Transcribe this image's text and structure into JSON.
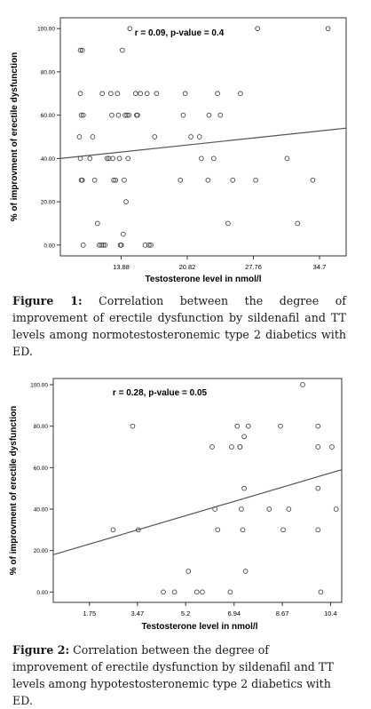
{
  "chart_data": [
    {
      "type": "scatter",
      "annotation": "r = 0.09, p-value = 0.4",
      "xlabel": "Testosterone level in nmol/l",
      "ylabel": "% of improvment of erectile dysfunction",
      "xlim": [
        7.5,
        37.5
      ],
      "ylim": [
        -5,
        105
      ],
      "xticks": [
        13.88,
        20.82,
        27.76,
        34.7
      ],
      "xtick_labels": [
        "13.88",
        "20.82",
        "27.76",
        "34.7"
      ],
      "yticks": [
        0,
        20,
        40,
        60,
        80,
        100
      ],
      "ytick_labels": [
        "0.00",
        "20.00",
        "40.00",
        "60.00",
        "80.00",
        "100.00"
      ],
      "fit_line": {
        "x": [
          7.5,
          37.5
        ],
        "y": [
          40,
          54
        ]
      },
      "points": [
        [
          9.6,
          90
        ],
        [
          9.8,
          90
        ],
        [
          9.6,
          70
        ],
        [
          9.7,
          60
        ],
        [
          9.9,
          60
        ],
        [
          9.5,
          50
        ],
        [
          9.6,
          40
        ],
        [
          9.7,
          30
        ],
        [
          9.8,
          30
        ],
        [
          9.9,
          0
        ],
        [
          10.6,
          40
        ],
        [
          10.9,
          50
        ],
        [
          11.1,
          30
        ],
        [
          11.4,
          10
        ],
        [
          11.6,
          0
        ],
        [
          11.8,
          0
        ],
        [
          12.0,
          0
        ],
        [
          12.2,
          0
        ],
        [
          11.9,
          70
        ],
        [
          12.4,
          40
        ],
        [
          12.6,
          40
        ],
        [
          12.8,
          70
        ],
        [
          12.9,
          60
        ],
        [
          13.0,
          40
        ],
        [
          13.1,
          30
        ],
        [
          13.3,
          30
        ],
        [
          13.5,
          70
        ],
        [
          13.6,
          60
        ],
        [
          13.7,
          40
        ],
        [
          13.8,
          0
        ],
        [
          13.9,
          0
        ],
        [
          14.0,
          90
        ],
        [
          14.1,
          5
        ],
        [
          14.2,
          30
        ],
        [
          14.3,
          60
        ],
        [
          14.4,
          20
        ],
        [
          14.5,
          60
        ],
        [
          14.6,
          40
        ],
        [
          14.7,
          60
        ],
        [
          14.8,
          100
        ],
        [
          15.4,
          70
        ],
        [
          15.5,
          60
        ],
        [
          15.6,
          60
        ],
        [
          15.9,
          70
        ],
        [
          16.4,
          0
        ],
        [
          16.6,
          70
        ],
        [
          16.8,
          0
        ],
        [
          17.0,
          0
        ],
        [
          17.4,
          50
        ],
        [
          17.6,
          70
        ],
        [
          20.1,
          30
        ],
        [
          20.4,
          60
        ],
        [
          20.6,
          70
        ],
        [
          21.2,
          50
        ],
        [
          22.1,
          50
        ],
        [
          22.3,
          40
        ],
        [
          23.0,
          30
        ],
        [
          23.1,
          60
        ],
        [
          23.6,
          40
        ],
        [
          24.0,
          70
        ],
        [
          24.3,
          60
        ],
        [
          25.1,
          10
        ],
        [
          25.6,
          30
        ],
        [
          26.4,
          70
        ],
        [
          28.0,
          30
        ],
        [
          28.2,
          100
        ],
        [
          31.3,
          40
        ],
        [
          32.4,
          10
        ],
        [
          34.0,
          30
        ],
        [
          35.6,
          100
        ]
      ]
    },
    {
      "type": "scatter",
      "annotation": "r = 0.28, p-value = 0.05",
      "xlabel": "Testosterone level in nmol/l",
      "ylabel": "% of improvment of erectile dysfunction",
      "xlim": [
        0.45,
        10.8
      ],
      "ylim": [
        -5,
        103
      ],
      "xticks": [
        1.75,
        3.47,
        5.2,
        6.94,
        8.67,
        10.4
      ],
      "xtick_labels": [
        "1.75",
        "3.47",
        "5.2",
        "6.94",
        "8.67",
        "10.4"
      ],
      "yticks": [
        0,
        20,
        40,
        60,
        80,
        100
      ],
      "ytick_labels": [
        "0.00",
        "20.00",
        "40.00",
        "60.00",
        "80.00",
        "100.00"
      ],
      "fit_line": {
        "x": [
          0.45,
          10.8
        ],
        "y": [
          18,
          59
        ]
      },
      "points": [
        [
          2.6,
          30
        ],
        [
          3.3,
          80
        ],
        [
          3.5,
          30
        ],
        [
          4.4,
          0
        ],
        [
          4.8,
          0
        ],
        [
          5.3,
          10
        ],
        [
          5.6,
          0
        ],
        [
          5.8,
          0
        ],
        [
          6.15,
          70
        ],
        [
          6.25,
          40
        ],
        [
          6.35,
          30
        ],
        [
          6.8,
          0
        ],
        [
          6.85,
          70
        ],
        [
          7.05,
          80
        ],
        [
          7.15,
          70
        ],
        [
          7.15,
          70
        ],
        [
          7.2,
          40
        ],
        [
          7.25,
          30
        ],
        [
          7.3,
          50
        ],
        [
          7.3,
          75
        ],
        [
          7.35,
          10
        ],
        [
          7.45,
          80
        ],
        [
          8.2,
          40
        ],
        [
          8.6,
          80
        ],
        [
          8.7,
          30
        ],
        [
          8.9,
          40
        ],
        [
          9.4,
          100
        ],
        [
          9.95,
          80
        ],
        [
          9.95,
          70
        ],
        [
          9.95,
          50
        ],
        [
          9.95,
          30
        ],
        [
          10.05,
          0
        ],
        [
          10.45,
          70
        ],
        [
          10.6,
          40
        ]
      ]
    }
  ],
  "captions": [
    {
      "label": "Figure 1:",
      "text": "Correlation between the degree of improvement of erectile dysfunction by sildenafil and TT levels among normotestosteronemic type 2 diabetics with ED."
    },
    {
      "label": "Figure 2:",
      "text": "Correlation between the degree of improvement of erectile dysfunction by sildenafil and TT levels among hypotestosteronemic type 2 diabetics with ED."
    }
  ]
}
